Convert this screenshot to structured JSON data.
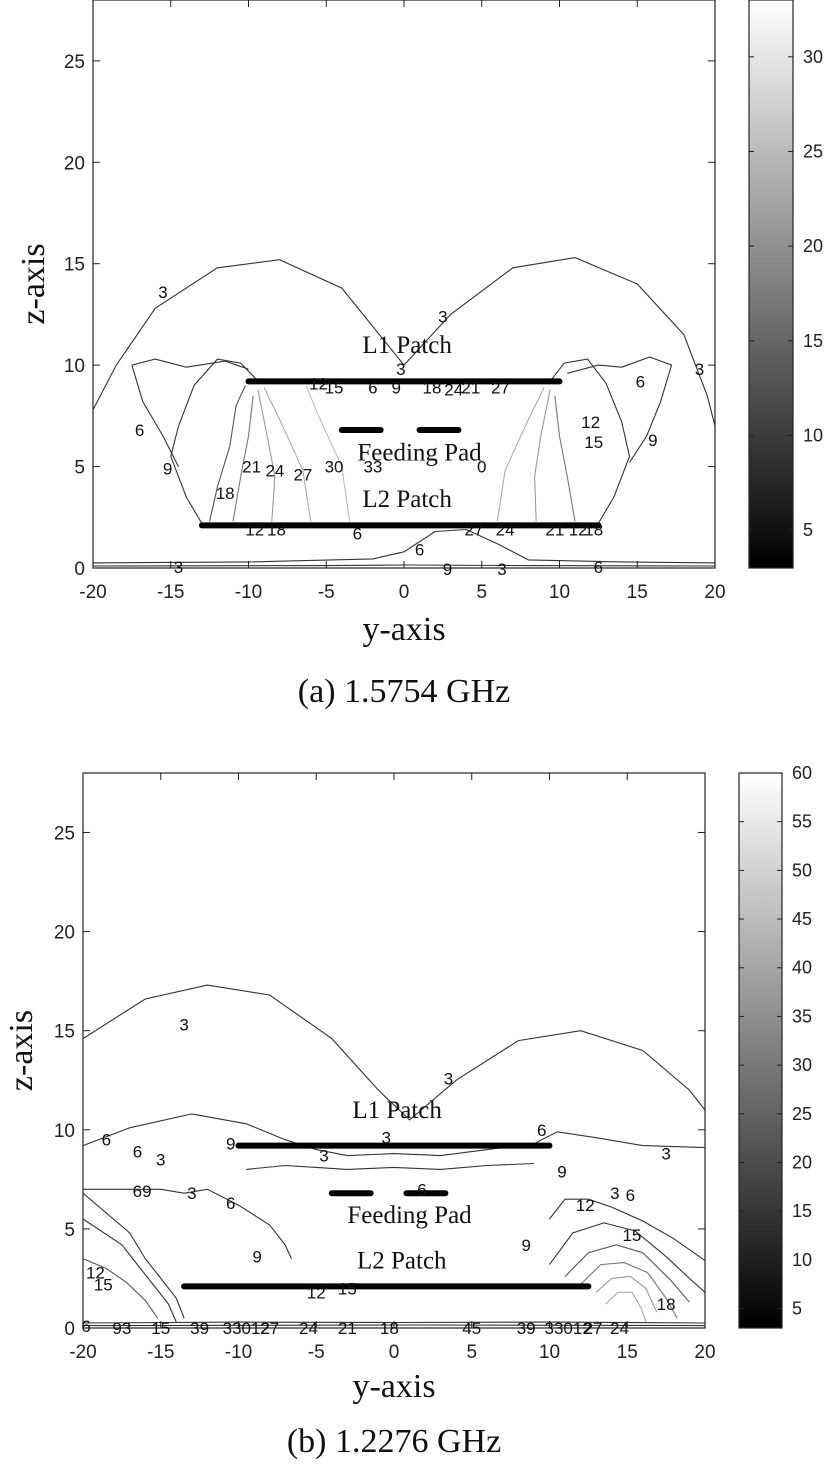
{
  "chart_data": [
    {
      "type": "contour",
      "caption": "(a)  1.5754  GHz",
      "xlabel": "y-axis",
      "ylabel": "z-axis",
      "xlim": [
        -20,
        20
      ],
      "ylim": [
        0,
        28
      ],
      "xticks": [
        -20,
        -15,
        -10,
        -5,
        0,
        5,
        10,
        15,
        20
      ],
      "yticks": [
        0,
        5,
        10,
        15,
        20,
        25
      ],
      "colorbar": {
        "min": 3,
        "max": 33,
        "ticks": [
          5,
          10,
          15,
          20,
          25,
          30
        ],
        "colormap": "gray"
      },
      "structures": [
        {
          "name": "L1 Patch",
          "y": [
            -10,
            10
          ],
          "z": 9.2,
          "label_pos": [
            0.2,
            10.6
          ]
        },
        {
          "name": "Feeding Pad",
          "y": [
            [
              -4,
              -1.5
            ],
            [
              1,
              3.5
            ]
          ],
          "z": 6.8,
          "label_pos": [
            1,
            5.3
          ]
        },
        {
          "name": "L2 Patch",
          "y": [
            -13,
            12.5
          ],
          "z": 2.1,
          "label_pos": [
            0.2,
            3.0
          ]
        }
      ],
      "contour_labels": [
        {
          "text": "3",
          "y": -15.5,
          "z": 13.6
        },
        {
          "text": "3",
          "y": 2.5,
          "z": 12.4
        },
        {
          "text": "3",
          "y": 19,
          "z": 9.8
        },
        {
          "text": "3",
          "y": -0.2,
          "z": 9.8
        },
        {
          "text": "6",
          "y": -17,
          "z": 6.8
        },
        {
          "text": "6",
          "y": 15.2,
          "z": 9.2
        },
        {
          "text": "9",
          "y": -15.2,
          "z": 4.9
        },
        {
          "text": "9",
          "y": 16,
          "z": 6.3
        },
        {
          "text": "12",
          "y": -5.5,
          "z": 9.1
        },
        {
          "text": "15",
          "y": -4.5,
          "z": 8.9
        },
        {
          "text": "6",
          "y": -2,
          "z": 8.9
        },
        {
          "text": "9",
          "y": -0.5,
          "z": 8.9
        },
        {
          "text": "18",
          "y": 1.8,
          "z": 8.9
        },
        {
          "text": "24",
          "y": 3.2,
          "z": 8.8
        },
        {
          "text": "21",
          "y": 4.3,
          "z": 8.9
        },
        {
          "text": "27",
          "y": 6.2,
          "z": 8.9
        },
        {
          "text": "12",
          "y": 12,
          "z": 7.2
        },
        {
          "text": "15",
          "y": 12.2,
          "z": 6.2
        },
        {
          "text": "21",
          "y": -9.8,
          "z": 5.0
        },
        {
          "text": "24",
          "y": -8.3,
          "z": 4.8
        },
        {
          "text": "27",
          "y": -6.5,
          "z": 4.6
        },
        {
          "text": "30",
          "y": -4.5,
          "z": 5.0
        },
        {
          "text": "33",
          "y": -2,
          "z": 5.0
        },
        {
          "text": "0",
          "y": 5,
          "z": 5.0
        },
        {
          "text": "18",
          "y": -11.5,
          "z": 3.7
        },
        {
          "text": "12",
          "y": -9.6,
          "z": 1.9
        },
        {
          "text": "18",
          "y": -8.2,
          "z": 1.9
        },
        {
          "text": "6",
          "y": -3,
          "z": 1.7
        },
        {
          "text": "27",
          "y": 4.5,
          "z": 1.9
        },
        {
          "text": "24",
          "y": 6.5,
          "z": 1.9
        },
        {
          "text": "21",
          "y": 9.7,
          "z": 1.9
        },
        {
          "text": "12",
          "y": 11.2,
          "z": 1.9
        },
        {
          "text": "18",
          "y": 12.2,
          "z": 1.9
        },
        {
          "text": "6",
          "y": 1,
          "z": 0.9
        },
        {
          "text": "3",
          "y": -14.5,
          "z": 0.05
        },
        {
          "text": "9",
          "y": 2.8,
          "z": -0.05
        },
        {
          "text": "3",
          "y": 6.3,
          "z": -0.05
        },
        {
          "text": "6",
          "y": 12.5,
          "z": 0.05
        }
      ]
    },
    {
      "type": "contour",
      "caption": "(b)  1.2276  GHz",
      "xlabel": "y-axis",
      "ylabel": "z-axis",
      "xlim": [
        -20,
        20
      ],
      "ylim": [
        0,
        28
      ],
      "xticks": [
        -20,
        -15,
        -10,
        -5,
        0,
        5,
        10,
        15,
        20
      ],
      "yticks": [
        0,
        5,
        10,
        15,
        20,
        25
      ],
      "colorbar": {
        "min": 3,
        "max": 60,
        "ticks": [
          5,
          10,
          15,
          20,
          25,
          30,
          35,
          40,
          45,
          50,
          55,
          60
        ],
        "colormap": "gray"
      },
      "structures": [
        {
          "name": "L1 Patch",
          "y": [
            -10,
            10
          ],
          "z": 9.2,
          "label_pos": [
            0.2,
            10.6
          ]
        },
        {
          "name": "Feeding Pad",
          "y": [
            [
              -4,
              -1.5
            ],
            [
              0.8,
              3.3
            ]
          ],
          "z": 6.8,
          "label_pos": [
            1,
            5.3
          ]
        },
        {
          "name": "L2 Patch",
          "y": [
            -13.5,
            12.5
          ],
          "z": 2.1,
          "label_pos": [
            0.5,
            3.0
          ]
        }
      ],
      "contour_labels": [
        {
          "text": "3",
          "y": -13.5,
          "z": 15.3
        },
        {
          "text": "3",
          "y": 3.5,
          "z": 12.6
        },
        {
          "text": "6",
          "y": -18.5,
          "z": 9.5
        },
        {
          "text": "6",
          "y": -16.5,
          "z": 8.9
        },
        {
          "text": "3",
          "y": -15,
          "z": 8.5
        },
        {
          "text": "9",
          "y": -10.5,
          "z": 9.3
        },
        {
          "text": "3",
          "y": -0.5,
          "z": 9.6
        },
        {
          "text": "3",
          "y": -4.5,
          "z": 8.7
        },
        {
          "text": "6",
          "y": 9.5,
          "z": 10.0
        },
        {
          "text": "3",
          "y": 17.5,
          "z": 8.8
        },
        {
          "text": "9",
          "y": 10.8,
          "z": 7.9
        },
        {
          "text": "69",
          "y": -16.2,
          "z": 6.9
        },
        {
          "text": "3",
          "y": -13,
          "z": 6.8
        },
        {
          "text": "6",
          "y": -10.5,
          "z": 6.3
        },
        {
          "text": "6",
          "y": 1.8,
          "z": 7.0
        },
        {
          "text": "3",
          "y": 14.2,
          "z": 6.8
        },
        {
          "text": "6",
          "y": 15.2,
          "z": 6.7
        },
        {
          "text": "9",
          "y": -8.8,
          "z": 3.6
        },
        {
          "text": "9",
          "y": 8.5,
          "z": 4.2
        },
        {
          "text": "12",
          "y": 12.3,
          "z": 6.2
        },
        {
          "text": "15",
          "y": 15.3,
          "z": 4.7
        },
        {
          "text": "18",
          "y": 17.5,
          "z": 1.2
        },
        {
          "text": "12",
          "y": -19.2,
          "z": 2.8
        },
        {
          "text": "15",
          "y": -18.7,
          "z": 2.2
        },
        {
          "text": "12",
          "y": -5,
          "z": 1.8
        },
        {
          "text": "15",
          "y": -3,
          "z": 2.0
        },
        {
          "text": "6",
          "y": -19.8,
          "z": 0.1
        },
        {
          "text": "93",
          "y": -17.5,
          "z": 0.0
        },
        {
          "text": "15",
          "y": -15,
          "z": 0.0
        },
        {
          "text": "39",
          "y": -12.5,
          "z": 0.0
        },
        {
          "text": "33012",
          "y": -9.5,
          "z": 0.0
        },
        {
          "text": "27",
          "y": -8,
          "z": 0.0
        },
        {
          "text": "24",
          "y": -5.5,
          "z": 0.0
        },
        {
          "text": "21",
          "y": -3,
          "z": 0.0
        },
        {
          "text": "18",
          "y": -0.3,
          "z": 0.0
        },
        {
          "text": "45",
          "y": 5,
          "z": 0.0
        },
        {
          "text": "39",
          "y": 8.5,
          "z": 0.0
        },
        {
          "text": "33012",
          "y": 11.2,
          "z": 0.0
        },
        {
          "text": "27",
          "y": 12.8,
          "z": 0.0
        },
        {
          "text": "24",
          "y": 14.5,
          "z": 0.0
        }
      ]
    }
  ]
}
